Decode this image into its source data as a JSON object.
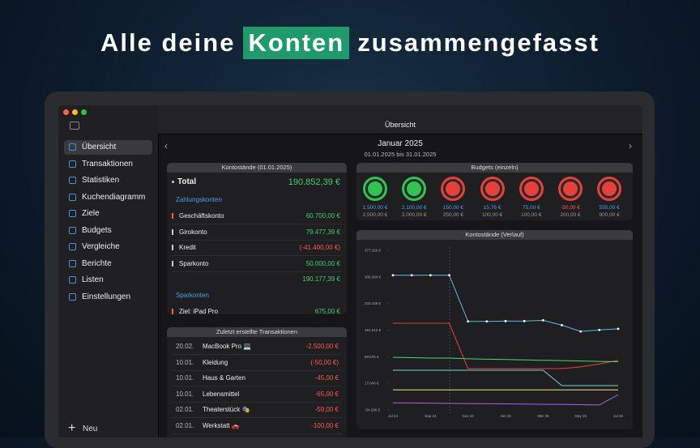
{
  "headline": {
    "before": "Alle deine",
    "highlight": "Konten",
    "after": "zusammengefasst"
  },
  "sidebar": {
    "items": [
      "Übersicht",
      "Transaktionen",
      "Statistiken",
      "Kuchendiagramm",
      "Ziele",
      "Budgets",
      "Vergleiche",
      "Berichte",
      "Listen",
      "Einstellungen"
    ],
    "new_button": "Neu"
  },
  "header": {
    "title": "Übersicht",
    "month": "Januar 2025",
    "range": "01.01.2025 bis 31.01.2025"
  },
  "balances": {
    "title": "Kontostände (01.01.2025)",
    "total_label": "Total",
    "total_value": "190.852,39 €",
    "sections": [
      {
        "name": "Zahlungskonten",
        "rows": [
          [
            "Geschäftskonto",
            "60.700,00 €"
          ],
          [
            "Girokonto",
            "79.477,39 €"
          ],
          [
            "Kredit",
            "(-41.400,00 €)"
          ],
          [
            "Sparkonto",
            "50.000,00 €"
          ]
        ],
        "subtotal": "190.177,39 €"
      },
      {
        "name": "Sparkonten",
        "rows": [
          [
            "Ziel: iPad Pro",
            "675,00 €"
          ]
        ]
      }
    ]
  },
  "transactions": {
    "title": "Zuletzt erstellte Transaktionen",
    "rows": [
      [
        "20.02.",
        "MacBook Pro 💻",
        "-2.500,00 €"
      ],
      [
        "10.01.",
        "Kleidung",
        "(-50,00 €)"
      ],
      [
        "10.01.",
        "Haus & Garten",
        "-45,00 €"
      ],
      [
        "10.01.",
        "Lebensmittel",
        "-65,00 €"
      ],
      [
        "02.01.",
        "Theaterstück 🎭",
        "-59,00 €"
      ],
      [
        "02.01.",
        "Werkstatt 🚗",
        "-100,00 €"
      ]
    ]
  },
  "budgets": {
    "title": "Budgets (einzeln)",
    "items": [
      {
        "spent": "1.500,00 €",
        "limit": "2.500,00 €",
        "color": "#30c452"
      },
      {
        "spent": "2.100,00 €",
        "limit": "2.000,00 €",
        "color": "#30c452"
      },
      {
        "spent": "150,00 €",
        "limit": "250,00 €",
        "color": "#e5413a"
      },
      {
        "spent": "15,76 €",
        "limit": "100,00 €",
        "color": "#e5413a"
      },
      {
        "spent": "75,00 €",
        "limit": "100,00 €",
        "color": "#e5413a"
      },
      {
        "spent": "-50,00 €",
        "limit": "200,00 €",
        "color": "#e5413a"
      },
      {
        "spent": "555,00 €",
        "limit": "900,00 €",
        "color": "#e5413a"
      }
    ]
  },
  "chart_data": {
    "type": "line",
    "title": "Kontostände (Verlauf)",
    "categories": [
      "Jul 24",
      null,
      "Sep 24",
      null,
      "Nov 24",
      null,
      "Jan 25",
      null,
      "Mär 25",
      null,
      "May 25",
      null,
      "Jul 25"
    ],
    "series": [
      {
        "color": "#5ab8e8",
        "markers": true,
        "values": [
          310000,
          310000,
          310000,
          310000,
          185000,
          185000,
          186000,
          186000,
          188000,
          175000,
          158000,
          162000,
          165000
        ]
      },
      {
        "color": "#e5413a",
        "values": [
          180000,
          180000,
          180000,
          180000,
          57500,
          57500,
          57500,
          57500,
          57500,
          57500,
          62000,
          70000,
          80000
        ]
      },
      {
        "color": "#4cd964",
        "values": [
          88000,
          87000,
          86000,
          86000,
          84000,
          83000,
          82000,
          81000,
          80000,
          79000,
          78000,
          77000,
          76000
        ]
      },
      {
        "color": "#7ad0e0",
        "values": [
          53000,
          53000,
          53000,
          53000,
          53000,
          53000,
          53000,
          53000,
          53000,
          11500,
          11500,
          11500,
          11500
        ]
      },
      {
        "color": "#f0e68c",
        "values": [
          0,
          0,
          0,
          0,
          0,
          0,
          0,
          0,
          0,
          0,
          0,
          0,
          0
        ]
      },
      {
        "color": "#b060e0",
        "values": [
          -35000,
          -35500,
          -36000,
          -36500,
          -37000,
          -37500,
          -38000,
          -38500,
          -39000,
          -39500,
          -40000,
          -41000,
          -13000
        ]
      }
    ],
    "ylim": [
      -54296,
      377320
    ],
    "yticks": [
      {
        "value": -54296,
        "label": "-54.296 €"
      },
      {
        "value": 17640,
        "label": "17.640 €"
      },
      {
        "value": 89576,
        "label": "89.576 €"
      },
      {
        "value": 161512,
        "label": "161.512 €"
      },
      {
        "value": 233448,
        "label": "233.448 €"
      },
      {
        "value": 305384,
        "label": "305.384 €"
      },
      {
        "value": 377320,
        "label": "377.320 €"
      }
    ],
    "grid": false
  }
}
